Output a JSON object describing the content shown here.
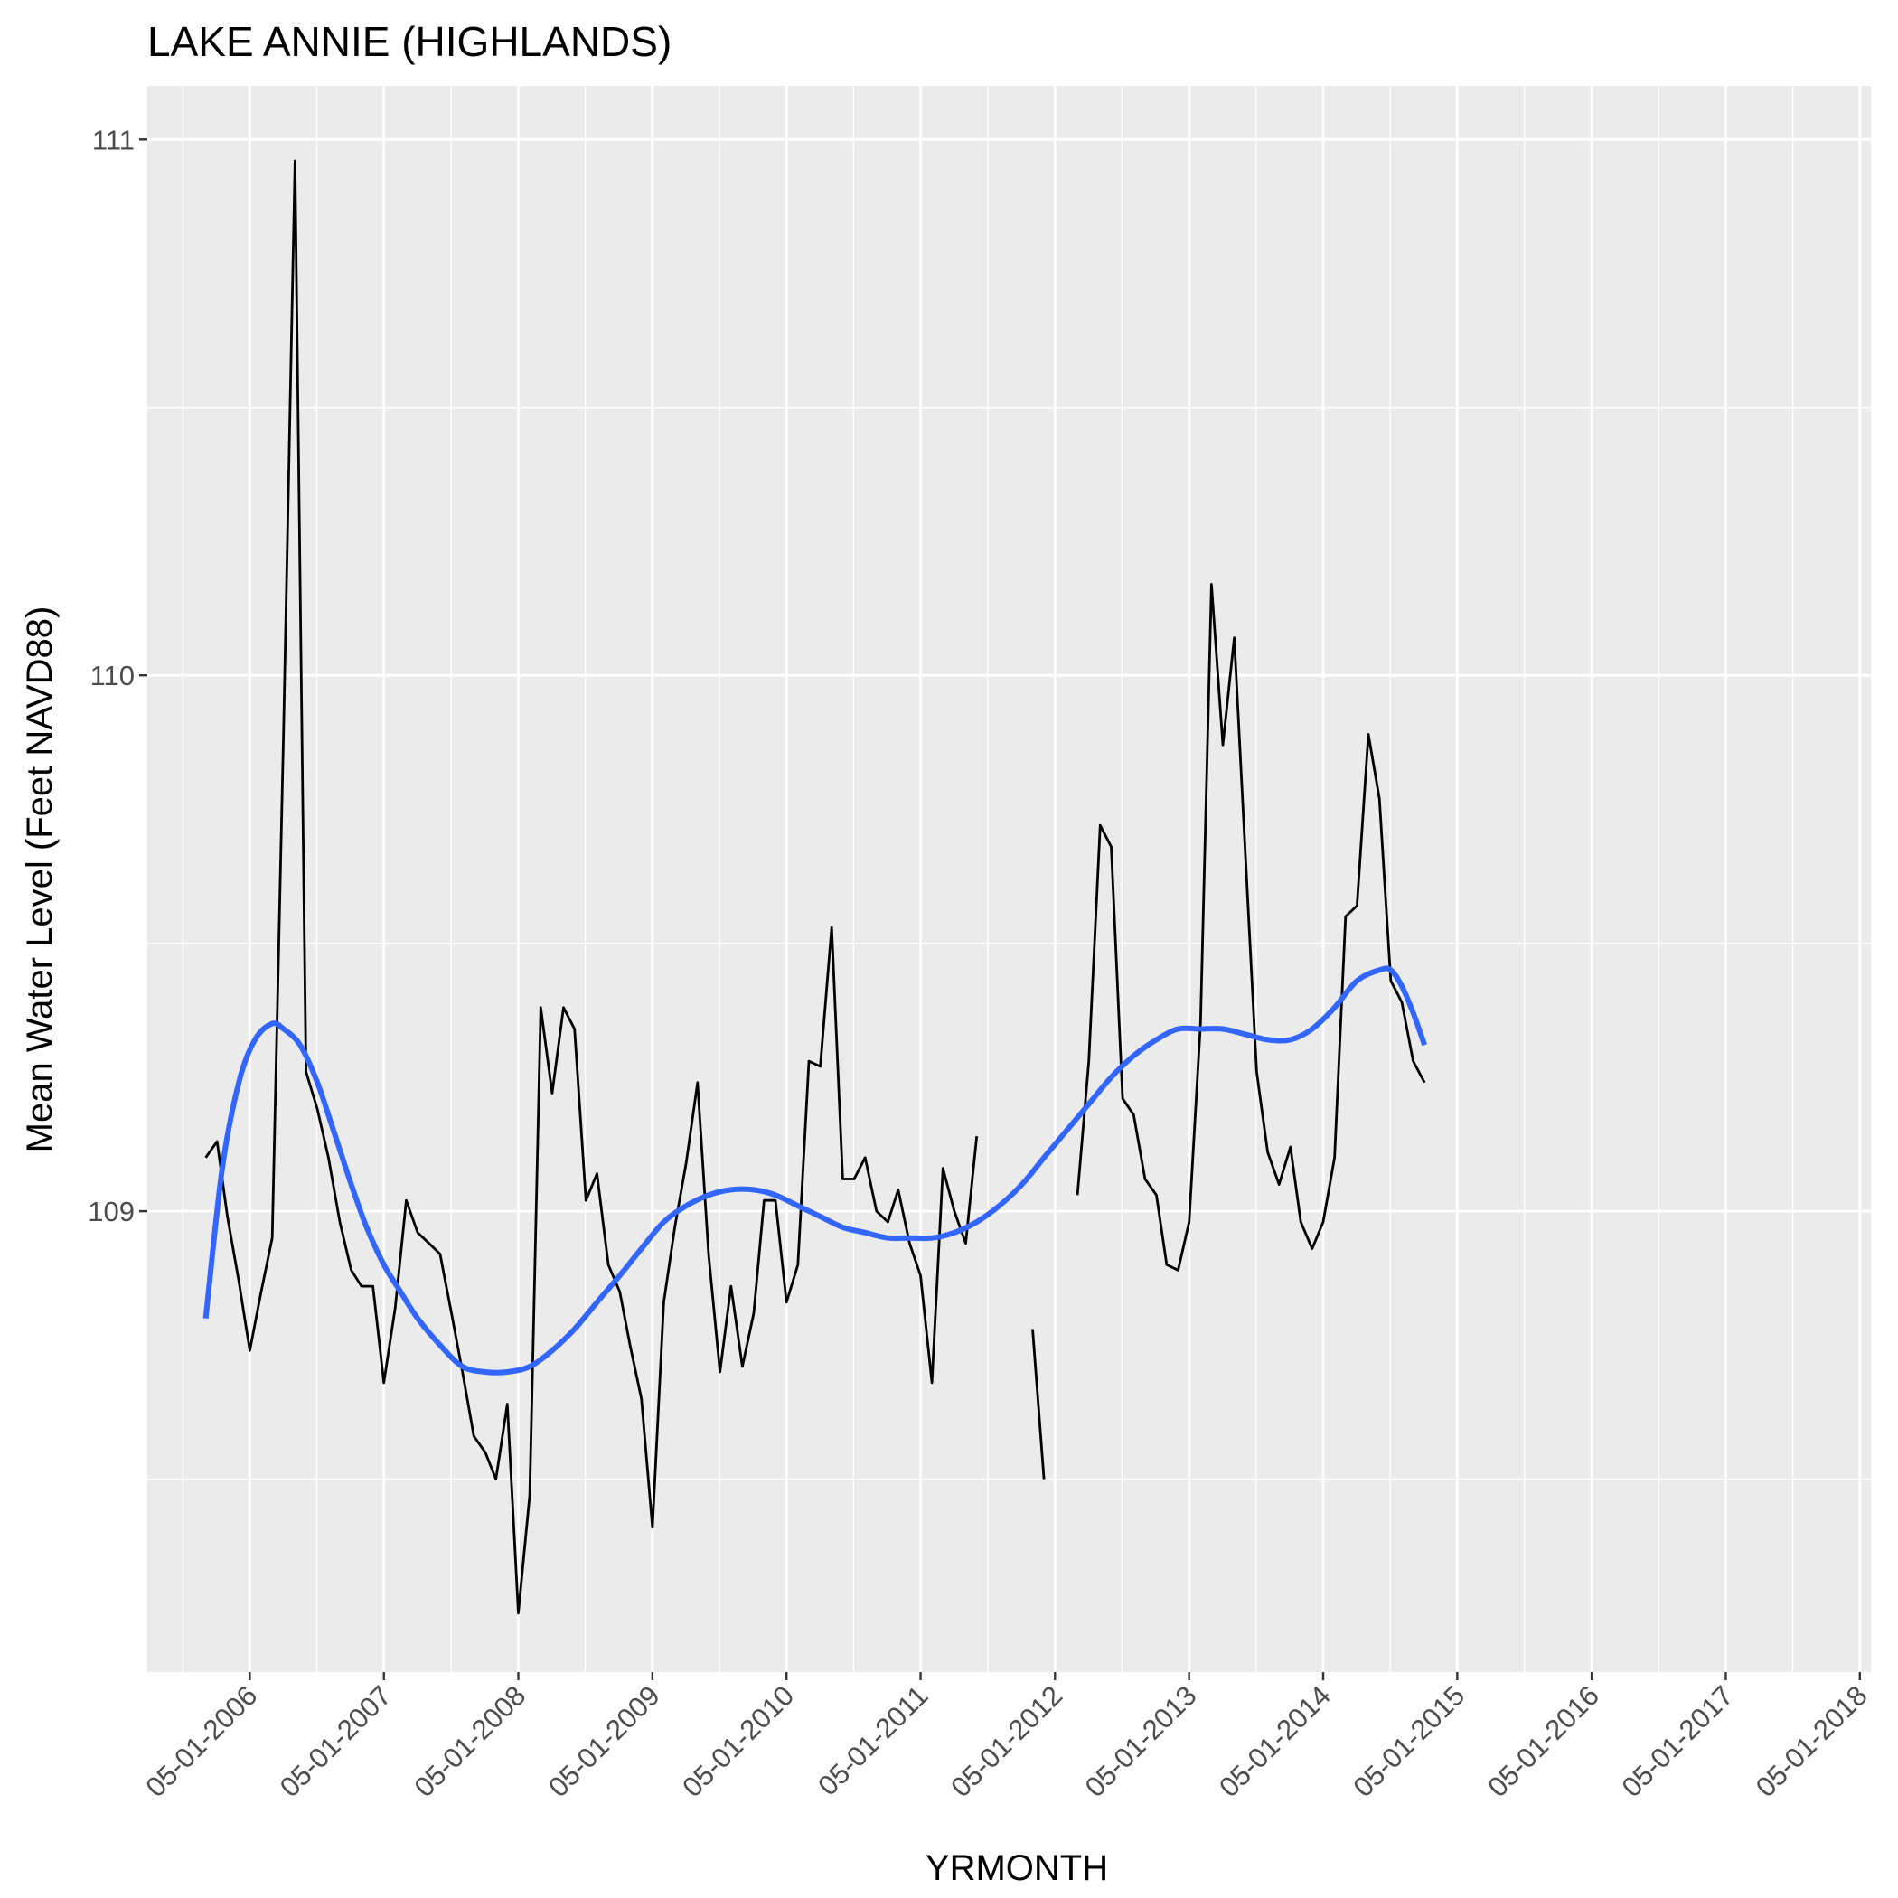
{
  "chart_data": {
    "type": "line",
    "title": "LAKE ANNIE (HIGHLANDS)",
    "xlabel": "YRMONTH",
    "ylabel": "Mean Water Level (Feet NAVD88)",
    "x_ticks": [
      "05-01-2006",
      "05-01-2007",
      "05-01-2008",
      "05-01-2009",
      "05-01-2010",
      "05-01-2011",
      "05-01-2012",
      "05-01-2013",
      "05-01-2014",
      "05-01-2015",
      "05-01-2016",
      "05-01-2017",
      "05-01-2018"
    ],
    "y_ticks": [
      "109",
      "110",
      "111"
    ],
    "xlim": [
      "2005-07-26",
      "2018-05-31"
    ],
    "ylim": [
      108.14,
      111.1
    ],
    "grid": true,
    "colors": {
      "panel": "#ebebeb",
      "grid": "#ffffff",
      "line": "#000000",
      "smooth": "#3366ff"
    },
    "series": [
      {
        "kind": "line",
        "segments": [
          [
            [
              "2006-01-01",
              109.1
            ],
            [
              "2006-02-01",
              109.13
            ],
            [
              "2006-03-01",
              108.99
            ],
            [
              "2006-04-01",
              108.87
            ],
            [
              "2006-05-01",
              108.74
            ],
            [
              "2006-06-01",
              108.85
            ],
            [
              "2006-07-01",
              108.95
            ],
            [
              "2006-08-01",
              109.9
            ],
            [
              "2006-09-01",
              110.96
            ],
            [
              "2006-10-01",
              109.26
            ],
            [
              "2006-11-01",
              109.19
            ],
            [
              "2006-12-01",
              109.1
            ],
            [
              "2007-01-01",
              108.98
            ],
            [
              "2007-02-01",
              108.89
            ],
            [
              "2007-03-01",
              108.86
            ],
            [
              "2007-04-01",
              108.86
            ],
            [
              "2007-05-01",
              108.68
            ],
            [
              "2007-06-01",
              108.82
            ],
            [
              "2007-07-01",
              109.02
            ],
            [
              "2007-08-01",
              108.96
            ],
            [
              "2007-09-01",
              108.94
            ],
            [
              "2007-10-01",
              108.92
            ],
            [
              "2007-11-01",
              108.81
            ],
            [
              "2007-12-01",
              108.7
            ],
            [
              "2008-01-01",
              108.58
            ],
            [
              "2008-02-01",
              108.55
            ],
            [
              "2008-03-01",
              108.5
            ],
            [
              "2008-04-01",
              108.64
            ],
            [
              "2008-05-01",
              108.25
            ],
            [
              "2008-06-01",
              108.47
            ],
            [
              "2008-07-01",
              109.38
            ],
            [
              "2008-08-01",
              109.22
            ],
            [
              "2008-09-01",
              109.38
            ],
            [
              "2008-10-01",
              109.34
            ],
            [
              "2008-11-01",
              109.02
            ],
            [
              "2008-12-01",
              109.07
            ],
            [
              "2009-01-01",
              108.9
            ],
            [
              "2009-02-01",
              108.85
            ],
            [
              "2009-03-01",
              108.75
            ],
            [
              "2009-04-01",
              108.65
            ],
            [
              "2009-05-01",
              108.41
            ],
            [
              "2009-06-01",
              108.83
            ],
            [
              "2009-07-01",
              108.97
            ],
            [
              "2009-08-01",
              109.09
            ],
            [
              "2009-09-01",
              109.24
            ],
            [
              "2009-10-01",
              108.92
            ],
            [
              "2009-11-01",
              108.7
            ],
            [
              "2009-12-01",
              108.86
            ],
            [
              "2010-01-01",
              108.71
            ],
            [
              "2010-02-01",
              108.81
            ],
            [
              "2010-03-01",
              109.02
            ],
            [
              "2010-04-01",
              109.02
            ],
            [
              "2010-05-01",
              108.83
            ],
            [
              "2010-06-01",
              108.9
            ],
            [
              "2010-07-01",
              109.28
            ],
            [
              "2010-08-01",
              109.27
            ],
            [
              "2010-09-01",
              109.53
            ],
            [
              "2010-10-01",
              109.06
            ],
            [
              "2010-11-01",
              109.06
            ],
            [
              "2010-12-01",
              109.1
            ],
            [
              "2011-01-01",
              109.0
            ],
            [
              "2011-02-01",
              108.98
            ],
            [
              "2011-03-01",
              109.04
            ],
            [
              "2011-04-01",
              108.94
            ],
            [
              "2011-05-01",
              108.88
            ],
            [
              "2011-06-01",
              108.68
            ],
            [
              "2011-07-01",
              109.08
            ],
            [
              "2011-08-01",
              109.0
            ],
            [
              "2011-09-01",
              108.94
            ],
            [
              "2011-10-01",
              109.14
            ]
          ],
          [
            [
              "2012-03-01",
              108.78
            ],
            [
              "2012-04-01",
              108.5
            ]
          ],
          [
            [
              "2012-07-01",
              109.03
            ],
            [
              "2012-08-01",
              109.28
            ],
            [
              "2012-09-01",
              109.72
            ],
            [
              "2012-10-01",
              109.68
            ],
            [
              "2012-11-01",
              109.21
            ],
            [
              "2012-12-01",
              109.18
            ],
            [
              "2013-01-01",
              109.06
            ],
            [
              "2013-02-01",
              109.03
            ],
            [
              "2013-03-01",
              108.9
            ],
            [
              "2013-04-01",
              108.89
            ],
            [
              "2013-05-01",
              108.98
            ],
            [
              "2013-06-01",
              109.35
            ],
            [
              "2013-07-01",
              110.17
            ],
            [
              "2013-08-01",
              109.87
            ],
            [
              "2013-09-01",
              110.07
            ],
            [
              "2013-10-01",
              109.67
            ],
            [
              "2013-11-01",
              109.26
            ],
            [
              "2013-12-01",
              109.11
            ],
            [
              "2014-01-01",
              109.05
            ],
            [
              "2014-02-01",
              109.12
            ],
            [
              "2014-03-01",
              108.98
            ],
            [
              "2014-04-01",
              108.93
            ],
            [
              "2014-05-01",
              108.98
            ],
            [
              "2014-06-01",
              109.1
            ],
            [
              "2014-07-01",
              109.55
            ],
            [
              "2014-08-01",
              109.57
            ],
            [
              "2014-09-01",
              109.89
            ],
            [
              "2014-10-01",
              109.77
            ],
            [
              "2014-11-01",
              109.43
            ],
            [
              "2014-12-01",
              109.39
            ],
            [
              "2015-01-01",
              109.28
            ],
            [
              "2015-02-01",
              109.24
            ]
          ]
        ]
      },
      {
        "kind": "smooth",
        "points": [
          [
            "2006-01-01",
            108.8
          ],
          [
            "2006-02-15",
            109.08
          ],
          [
            "2006-04-01",
            109.24
          ],
          [
            "2006-05-15",
            109.32
          ],
          [
            "2006-07-01",
            109.35
          ],
          [
            "2006-08-01",
            109.34
          ],
          [
            "2006-09-15",
            109.31
          ],
          [
            "2006-11-01",
            109.24
          ],
          [
            "2006-12-15",
            109.15
          ],
          [
            "2007-02-01",
            109.05
          ],
          [
            "2007-03-15",
            108.97
          ],
          [
            "2007-05-01",
            108.9
          ],
          [
            "2007-06-15",
            108.85
          ],
          [
            "2007-08-01",
            108.8
          ],
          [
            "2007-10-01",
            108.75
          ],
          [
            "2007-12-01",
            108.71
          ],
          [
            "2008-02-01",
            108.7
          ],
          [
            "2008-04-01",
            108.7
          ],
          [
            "2008-06-01",
            108.71
          ],
          [
            "2008-08-01",
            108.74
          ],
          [
            "2008-10-01",
            108.78
          ],
          [
            "2008-12-01",
            108.83
          ],
          [
            "2009-02-01",
            108.88
          ],
          [
            "2009-04-01",
            108.93
          ],
          [
            "2009-06-01",
            108.98
          ],
          [
            "2009-08-01",
            109.01
          ],
          [
            "2009-10-01",
            109.03
          ],
          [
            "2009-12-01",
            109.04
          ],
          [
            "2010-02-01",
            109.04
          ],
          [
            "2010-04-01",
            109.03
          ],
          [
            "2010-06-01",
            109.01
          ],
          [
            "2010-08-01",
            108.99
          ],
          [
            "2010-10-01",
            108.97
          ],
          [
            "2010-12-01",
            108.96
          ],
          [
            "2011-02-01",
            108.95
          ],
          [
            "2011-04-01",
            108.95
          ],
          [
            "2011-06-01",
            108.95
          ],
          [
            "2011-08-01",
            108.96
          ],
          [
            "2011-10-01",
            108.98
          ],
          [
            "2011-12-01",
            109.01
          ],
          [
            "2012-02-01",
            109.05
          ],
          [
            "2012-04-01",
            109.1
          ],
          [
            "2012-06-01",
            109.15
          ],
          [
            "2012-08-01",
            109.2
          ],
          [
            "2012-10-01",
            109.25
          ],
          [
            "2012-12-01",
            109.29
          ],
          [
            "2013-02-01",
            109.32
          ],
          [
            "2013-04-01",
            109.34
          ],
          [
            "2013-06-01",
            109.34
          ],
          [
            "2013-08-01",
            109.34
          ],
          [
            "2013-10-01",
            109.33
          ],
          [
            "2013-12-01",
            109.32
          ],
          [
            "2014-02-01",
            109.32
          ],
          [
            "2014-04-01",
            109.34
          ],
          [
            "2014-06-01",
            109.38
          ],
          [
            "2014-08-01",
            109.43
          ],
          [
            "2014-10-01",
            109.45
          ],
          [
            "2014-11-01",
            109.45
          ],
          [
            "2014-12-01",
            109.42
          ],
          [
            "2015-01-01",
            109.37
          ],
          [
            "2015-02-01",
            109.31
          ]
        ]
      }
    ]
  }
}
